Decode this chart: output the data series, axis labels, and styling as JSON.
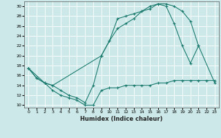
{
  "xlabel": "Humidex (Indice chaleur)",
  "bg_color": "#cce8e8",
  "grid_color": "#ffffff",
  "line_color": "#1a7a6e",
  "xlim": [
    -0.5,
    23.5
  ],
  "ylim": [
    9.5,
    31
  ],
  "yticks": [
    10,
    12,
    14,
    16,
    18,
    20,
    22,
    24,
    26,
    28,
    30
  ],
  "xticks": [
    0,
    1,
    2,
    3,
    4,
    5,
    6,
    7,
    8,
    9,
    10,
    11,
    12,
    13,
    14,
    15,
    16,
    17,
    18,
    19,
    20,
    21,
    22,
    23
  ],
  "line1_x": [
    0,
    1,
    2,
    3,
    4,
    5,
    6,
    7,
    8,
    9,
    10,
    11,
    12,
    13,
    14,
    15,
    16,
    17,
    18,
    19,
    20,
    21
  ],
  "line1_y": [
    17.5,
    15.5,
    14.5,
    14.0,
    13.0,
    12.0,
    11.5,
    10.5,
    14.0,
    20.0,
    23.0,
    27.5,
    28.0,
    28.5,
    29.0,
    29.5,
    30.5,
    30.5,
    30.0,
    29.0,
    27.0,
    22.0
  ],
  "line2_x": [
    0,
    1,
    2,
    3,
    4,
    5,
    6,
    7,
    8,
    9,
    10,
    11,
    12,
    13,
    14,
    15,
    16,
    17,
    18,
    19,
    20,
    21,
    22,
    23
  ],
  "line2_y": [
    17.5,
    15.5,
    14.5,
    13.0,
    12.0,
    11.5,
    11.0,
    10.0,
    10.0,
    13.0,
    13.5,
    13.5,
    14.0,
    14.0,
    14.0,
    14.0,
    14.5,
    14.5,
    15.0,
    15.0,
    15.0,
    15.0,
    15.0,
    15.0
  ],
  "line3_x": [
    0,
    2,
    3,
    9,
    10,
    11,
    12,
    13,
    14,
    15,
    16,
    17,
    18,
    19,
    20,
    21,
    23
  ],
  "line3_y": [
    17.5,
    14.5,
    14.0,
    20.0,
    23.0,
    25.5,
    26.5,
    27.5,
    29.0,
    30.0,
    30.5,
    30.0,
    26.5,
    22.0,
    18.5,
    22.0,
    14.5
  ]
}
